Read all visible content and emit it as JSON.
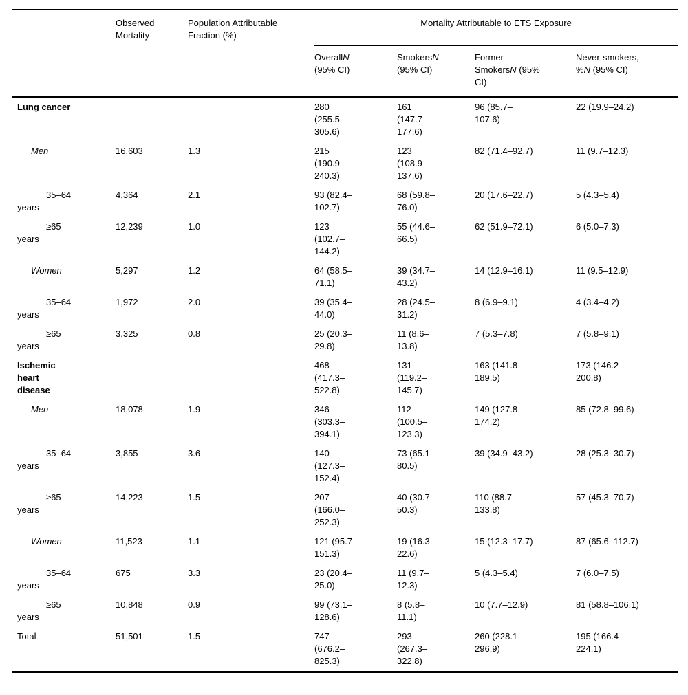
{
  "header": {
    "observed": "Observed Mortality",
    "paf": "Population Attributable Fraction (%)",
    "ets_span": "Mortality Attributable to ETS Exposure",
    "sub": [
      {
        "pre": "Overall",
        "n": "N",
        "post": " (95% CI)"
      },
      {
        "pre": "Smokers",
        "n": "N",
        "post": " (95% CI)"
      },
      {
        "pre": "Former Smokers",
        "n": "N",
        "post": " (95% CI)"
      },
      {
        "pre": "Never-smokers, %",
        "n": "N",
        "post": " (95% CI)"
      }
    ]
  },
  "rows": [
    {
      "type": "disease",
      "label": "Lung cancer",
      "observed": "",
      "paf": "",
      "overall": "280 (255.5–305.6)",
      "smokers": "161 (147.7–177.6)",
      "former": "96 (85.7–107.6)",
      "never": "22 (19.9–24.2)"
    },
    {
      "type": "sex",
      "label": "Men",
      "observed": "16,603",
      "paf": "1.3",
      "overall": "215 (190.9–240.3)",
      "smokers": "123 (108.9–137.6)",
      "former": "82 (71.4–92.7)",
      "never": "11 (9.7–12.3)"
    },
    {
      "type": "age",
      "label": "35–64\nyears",
      "observed": "4,364",
      "paf": "2.1",
      "overall": "93 (82.4–102.7)",
      "smokers": "68 (59.8–76.0)",
      "former": "20 (17.6–22.7)",
      "never": "5 (4.3–5.4)"
    },
    {
      "type": "age",
      "label": "≥65\nyears",
      "observed": "12,239",
      "paf": "1.0",
      "overall": "123 (102.7–144.2)",
      "smokers": "55 (44.6–66.5)",
      "former": "62 (51.9–72.1)",
      "never": "6 (5.0–7.3)"
    },
    {
      "type": "sex",
      "label": "Women",
      "observed": "5,297",
      "paf": "1.2",
      "overall": "64 (58.5–71.1)",
      "smokers": "39 (34.7–43.2)",
      "former": "14 (12.9–16.1)",
      "never": "11 (9.5–12.9)"
    },
    {
      "type": "age",
      "label": "35–64\nyears",
      "observed": "1,972",
      "paf": "2.0",
      "overall": "39 (35.4–44.0)",
      "smokers": "28 (24.5–31.2)",
      "former": "8 (6.9–9.1)",
      "never": "4 (3.4–4.2)"
    },
    {
      "type": "age",
      "label": "≥65\nyears",
      "observed": "3,325",
      "paf": "0.8",
      "overall": "25 (20.3–29.8)",
      "smokers": "11 (8.6–13.8)",
      "former": "7 (5.3–7.8)",
      "never": "7 (5.8–9.1)"
    },
    {
      "type": "disease",
      "label": "Ischemic\nheart\ndisease",
      "observed": "",
      "paf": "",
      "overall": "468 (417.3–522.8)",
      "smokers": "131 (119.2–145.7)",
      "former": "163 (141.8–189.5)",
      "never": "173 (146.2–200.8)"
    },
    {
      "type": "sex",
      "label": "Men",
      "observed": "18,078",
      "paf": "1.9",
      "overall": "346 (303.3–394.1)",
      "smokers": "112 (100.5–123.3)",
      "former": "149 (127.8–174.2)",
      "never": "85 (72.8–99.6)"
    },
    {
      "type": "age",
      "label": "35–64\nyears",
      "observed": "3,855",
      "paf": "3.6",
      "overall": "140 (127.3–152.4)",
      "smokers": "73 (65.1–80.5)",
      "former": "39 (34.9–43.2)",
      "never": "28 (25.3–30.7)"
    },
    {
      "type": "age",
      "label": "≥65\nyears",
      "observed": "14,223",
      "paf": "1.5",
      "overall": "207 (166.0–252.3)",
      "smokers": "40 (30.7–50.3)",
      "former": "110 (88.7–133.8)",
      "never": "57 (45.3–70.7)"
    },
    {
      "type": "sex",
      "label": "Women",
      "observed": "11,523",
      "paf": "1.1",
      "overall": "121 (95.7–151.3)",
      "smokers": "19 (16.3–22.6)",
      "former": "15 (12.3–17.7)",
      "never": "87 (65.6–112.7)"
    },
    {
      "type": "age",
      "label": "35–64\nyears",
      "observed": "675",
      "paf": "3.3",
      "overall": "23 (20.4–25.0)",
      "smokers": "11 (9.7–12.3)",
      "former": "5 (4.3–5.4)",
      "never": "7 (6.0–7.5)"
    },
    {
      "type": "age",
      "label": "≥65\nyears",
      "observed": "10,848",
      "paf": "0.9",
      "overall": "99 (73.1–128.6)",
      "smokers": "8 (5.8–11.1)",
      "former": "10 (7.7–12.9)",
      "never": "81 (58.8–106.1)"
    },
    {
      "type": "total",
      "label": "Total",
      "observed": "51,501",
      "paf": "1.5",
      "overall": "747 (676.2–825.3)",
      "smokers": "293 (267.3–322.8)",
      "former": "260 (228.1–296.9)",
      "never": "195 (166.4–224.1)"
    }
  ]
}
